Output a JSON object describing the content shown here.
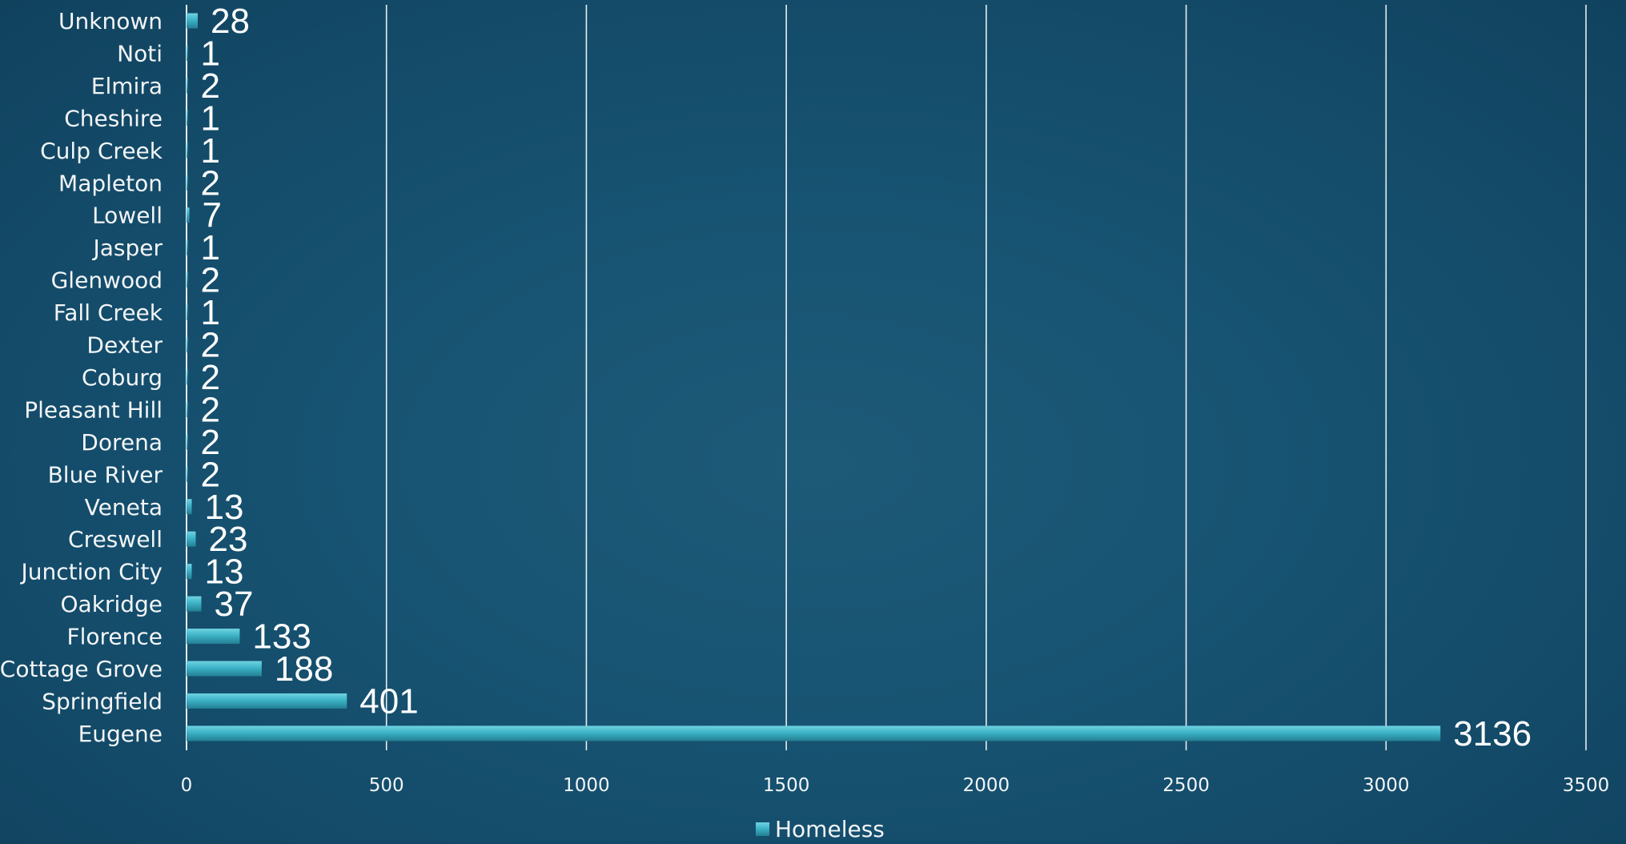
{
  "chart_data": {
    "type": "bar",
    "orientation": "horizontal",
    "categories": [
      "Unknown",
      "Noti",
      "Elmira",
      "Cheshire",
      "Culp Creek",
      "Mapleton",
      "Lowell",
      "Jasper",
      "Glenwood",
      "Fall Creek",
      "Dexter",
      "Coburg",
      "Pleasant Hill",
      "Dorena",
      "Blue River",
      "Veneta",
      "Creswell",
      "Junction City",
      "Oakridge",
      "Florence",
      "Cottage Grove",
      "Springfield",
      "Eugene"
    ],
    "series": [
      {
        "name": "Homeless",
        "values": [
          28,
          1,
          2,
          1,
          1,
          2,
          7,
          1,
          2,
          1,
          2,
          2,
          2,
          2,
          2,
          13,
          23,
          13,
          37,
          133,
          188,
          401,
          3136
        ]
      }
    ],
    "data_labels": [
      "28",
      "1",
      "2",
      "1",
      "1",
      "2",
      "7",
      "1",
      "2",
      "1",
      "2",
      "2",
      "2",
      "2",
      "2",
      "13",
      "23",
      "13",
      "37",
      "133",
      "188",
      "401",
      "3136"
    ],
    "x_ticks": [
      "0",
      "500",
      "1000",
      "1500",
      "2000",
      "2500",
      "3000",
      "3500"
    ],
    "xlim": [
      0,
      3500
    ],
    "grid": "vertical",
    "legend": {
      "position": "bottom",
      "label": "Homeless"
    },
    "colors": {
      "bar": "#3db3c7",
      "bar_highlight": "#6fd3e2",
      "bar_shadow": "#237f92",
      "grid": "#ffffff",
      "text": "#f2f5f7",
      "background": "#175372"
    }
  }
}
